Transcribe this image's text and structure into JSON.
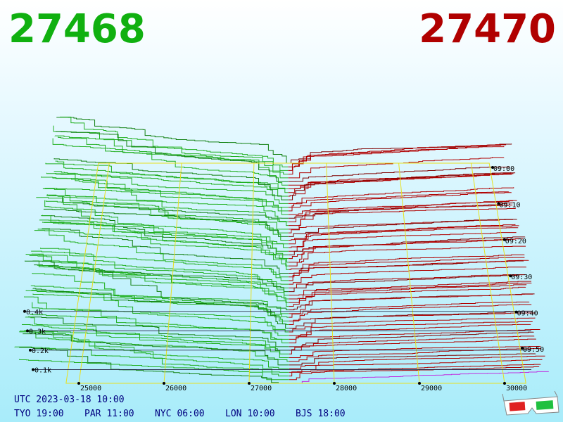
{
  "bid": 27468,
  "ask": 27470,
  "price_axis": {
    "ticks": [
      25000,
      26000,
      27000,
      28000,
      29000,
      30000
    ]
  },
  "depth_axis": {
    "ticks": [
      {
        "value": 100,
        "label": "0.1k"
      },
      {
        "value": 200,
        "label": "0.2k"
      },
      {
        "value": 300,
        "label": "0.3k"
      },
      {
        "value": 400,
        "label": "0.4k"
      }
    ]
  },
  "time_axis": {
    "ticks": [
      "09:00",
      "09:10",
      "09:20",
      "09:30",
      "09:40",
      "09:50"
    ]
  },
  "timestamp": "UTC 2023-03-18 10:00",
  "clocks": [
    {
      "city": "TYO",
      "time": "19:00"
    },
    {
      "city": "PAR",
      "time": "11:00"
    },
    {
      "city": "NYC",
      "time": "06:00"
    },
    {
      "city": "LON",
      "time": "10:00"
    },
    {
      "city": "BJS",
      "time": "18:00"
    }
  ]
}
